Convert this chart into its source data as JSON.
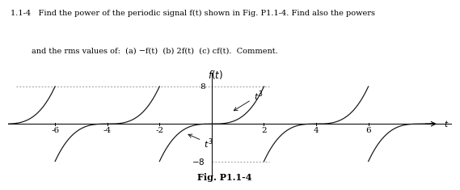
{
  "title": "f(t)",
  "fig_label": "Fig. P1.1-4",
  "problem_text_line1": "1.1-4   Find the power of the periodic signal f(t) shown in Fig. P1.1-4. Find also the powers",
  "problem_text_line2": "and the rms values of:  (a) −f(t)  (b) 2f(t)  (c) cf(t).  Comment.",
  "period": 4,
  "ymax": 8,
  "ymin": -8,
  "xticks": [
    -6,
    -4,
    -2,
    2,
    4,
    6
  ],
  "background_color": "#ffffff",
  "curve_color": "#111111",
  "axis_color": "#111111",
  "dotted_color": "#999999",
  "fontsize_problem": 7.0,
  "fontsize_title": 8.5,
  "fontsize_tick": 7.5,
  "fontsize_annotation": 8.0,
  "fontsize_figlabel": 8.0
}
